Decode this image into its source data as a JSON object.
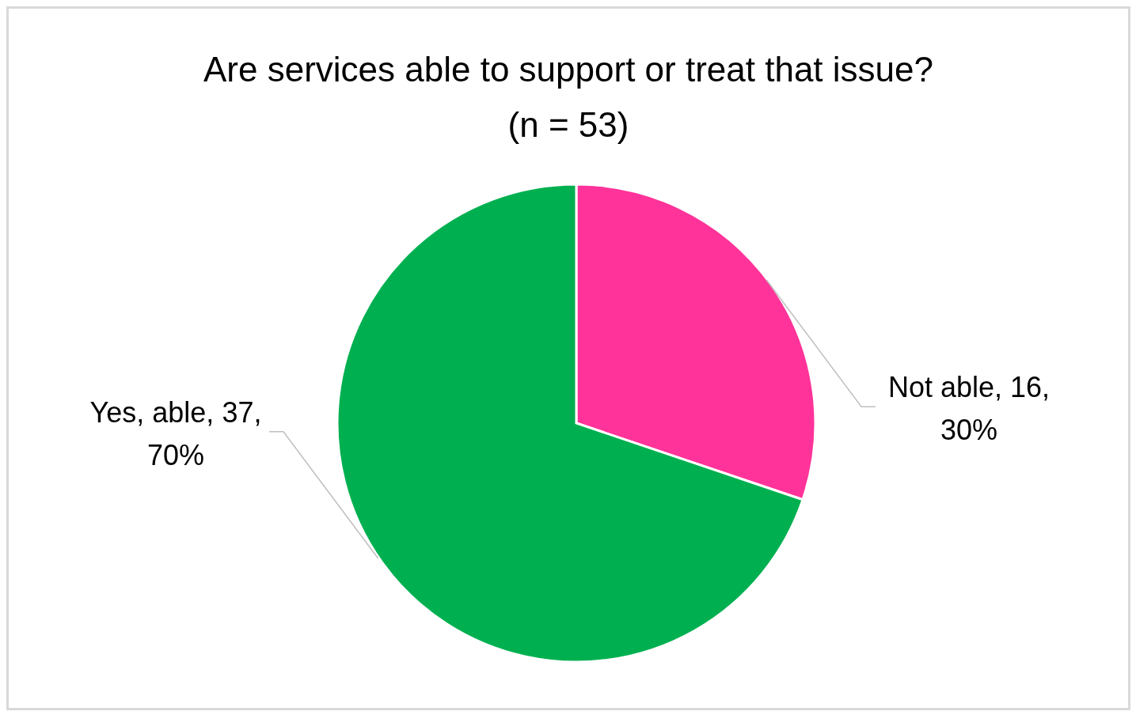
{
  "chart_data": {
    "type": "pie",
    "title": "Are services able to support or treat that issue?\n(n = 53)",
    "categories": [
      "Not able",
      "Yes, able"
    ],
    "values": [
      16,
      37
    ],
    "colors": [
      "#ff3399",
      "#00b050"
    ],
    "value_labels": [
      "16, 30%",
      "37, 70%"
    ]
  }
}
